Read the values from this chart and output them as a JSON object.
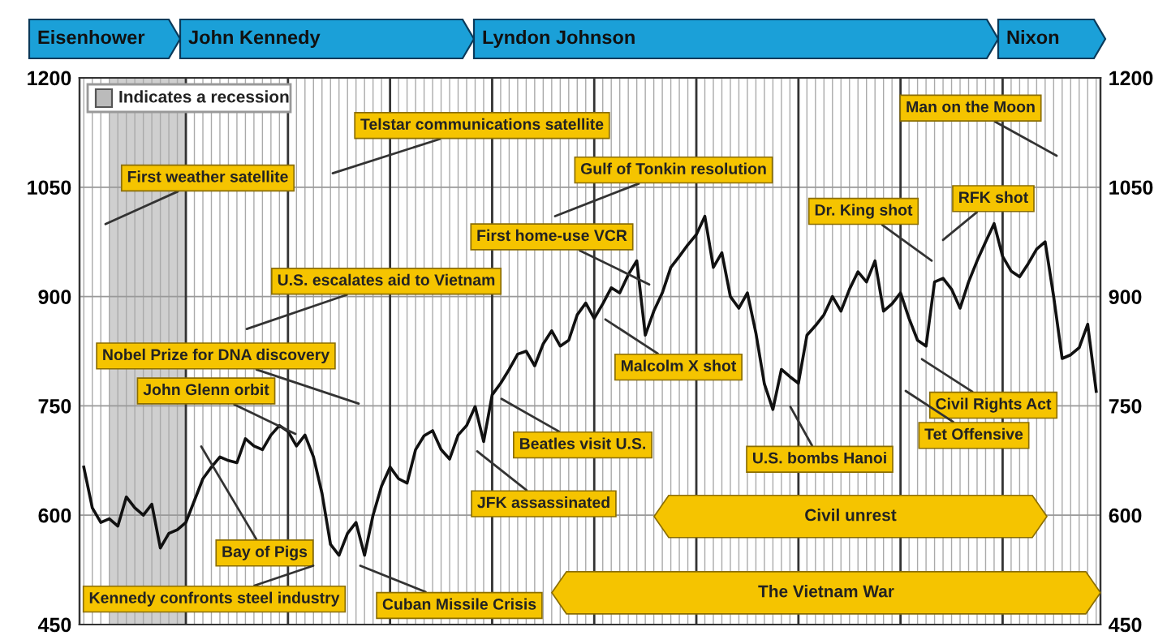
{
  "chart_data": {
    "type": "line",
    "categories": [
      null,
      null,
      null,
      null,
      null,
      null,
      null,
      null,
      null,
      null,
      null,
      null,
      null,
      null,
      null,
      null,
      null,
      null,
      null,
      null,
      null,
      null,
      null,
      null,
      null,
      null,
      null,
      null,
      null,
      null,
      null,
      null,
      null,
      null,
      null,
      null,
      null,
      null,
      null,
      null,
      null,
      null,
      null,
      null,
      null,
      null,
      null,
      null,
      null,
      null,
      null,
      null,
      null,
      null,
      null,
      null,
      null,
      null,
      null,
      null,
      null,
      null,
      null,
      null,
      null,
      null,
      null,
      null,
      null,
      null,
      null,
      null,
      null,
      null,
      null,
      null,
      null,
      null,
      null,
      null,
      null,
      null,
      null,
      null,
      null,
      null,
      null,
      null,
      null,
      null,
      null,
      null,
      null,
      null,
      null,
      null,
      null,
      null,
      null,
      null,
      null,
      null,
      null,
      null,
      null,
      null,
      null,
      null,
      null,
      null,
      null,
      null,
      null,
      null,
      null,
      null,
      null,
      null,
      null,
      null
    ],
    "series": [
      {
        "color": "#111111",
        "values": [
          666,
          610,
          590,
          595,
          585,
          625,
          610,
          600,
          615,
          555,
          575,
          580,
          590,
          620,
          650,
          666,
          680,
          675,
          672,
          705,
          695,
          690,
          710,
          723,
          715,
          695,
          710,
          680,
          630,
          560,
          545,
          575,
          590,
          545,
          600,
          640,
          666,
          650,
          644,
          690,
          709,
          716,
          690,
          677,
          710,
          723,
          749,
          701,
          765,
          781,
          800,
          821,
          825,
          805,
          835,
          853,
          832,
          840,
          875,
          891,
          870,
          890,
          912,
          905,
          930,
          949,
          847,
          880,
          905,
          940,
          955,
          971,
          985,
          1010,
          940,
          960,
          900,
          884,
          905,
          850,
          780,
          745,
          800,
          790,
          781,
          847,
          860,
          875,
          900,
          880,
          910,
          934,
          920,
          949,
          880,
          890,
          905,
          870,
          840,
          832,
          920,
          925,
          910,
          884,
          920,
          949,
          975,
          1000,
          955,
          935,
          927,
          945,
          965,
          975,
          900,
          815,
          820,
          830,
          862,
          770
        ]
      }
    ],
    "ylim": [
      450,
      1200
    ],
    "yticks": [
      450,
      600,
      750,
      900,
      1050,
      1200
    ],
    "y2lim": [
      450,
      1200
    ],
    "y2ticks": [
      450,
      600,
      750,
      900,
      1050,
      1200
    ],
    "tick_labels": "y",
    "grid": true,
    "annotations": [
      "Indicates a recession",
      "First weather satellite",
      "Telstar communications satellite",
      "U.S. escalates aid to Vietnam",
      "Nobel Prize for DNA discovery",
      "John Glenn orbit",
      "Bay of Pigs",
      "Kennedy confronts steel industry",
      "Cuban Missile Crisis",
      "Beatles visit U.S.",
      "JFK assassinated",
      "First home-use VCR",
      "Gulf of Tonkin resolution",
      "Malcolm X shot",
      "U.S. bombs Hanoi",
      "Dr. King shot",
      "RFK shot",
      "Civil Rights Act",
      "Tet Offensive",
      "Man on the Moon",
      "Eisenhower",
      "John Kennedy",
      "Lyndon Johnson",
      "Nixon",
      "Civil unrest",
      "The Vietnam War"
    ]
  }
}
